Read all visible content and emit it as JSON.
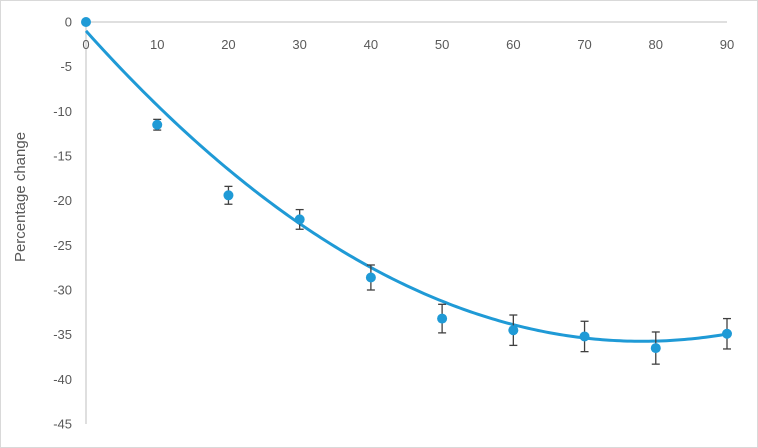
{
  "chart_data": {
    "type": "scatter",
    "title": "",
    "xlabel": "",
    "ylabel": "Percentage change",
    "xlim": [
      0,
      90
    ],
    "ylim": [
      -45,
      0
    ],
    "x_ticks": [
      0,
      10,
      20,
      30,
      40,
      50,
      60,
      70,
      80,
      90
    ],
    "y_ticks": [
      0,
      -5,
      -10,
      -15,
      -20,
      -25,
      -30,
      -35,
      -40,
      -45
    ],
    "x_axis_position": "top (at y = 0)",
    "grid": false,
    "legend": "none",
    "series": [
      {
        "color": "#1f9ad6",
        "marker": "circle",
        "x": [
          0,
          10,
          20,
          30,
          40,
          50,
          60,
          70,
          80,
          90
        ],
        "y": [
          0,
          -11.5,
          -19.4,
          -22.1,
          -28.6,
          -33.2,
          -34.5,
          -35.2,
          -36.5,
          -34.9
        ],
        "error": [
          0,
          0.6,
          1.0,
          1.1,
          1.4,
          1.6,
          1.7,
          1.7,
          1.8,
          1.7
        ]
      }
    ],
    "trendline": {
      "type": "polynomial (order 2)",
      "color": "#1f9ad6",
      "coefficients": [
        -1.0,
        -0.89,
        0.0057
      ]
    },
    "error_bar_color": "#404040"
  }
}
